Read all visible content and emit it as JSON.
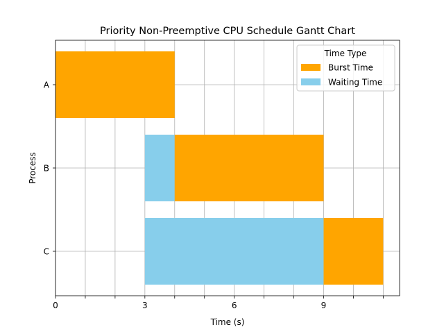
{
  "chart_data": {
    "type": "gantt",
    "title": "Priority Non-Preemptive CPU Schedule Gantt Chart",
    "xlabel": "Time (s)",
    "ylabel": "Process",
    "xlim": [
      0,
      11.55
    ],
    "x_ticks_major": [
      0,
      3,
      6,
      9
    ],
    "x_ticks_minor": [
      1,
      2,
      4,
      5,
      7,
      8,
      10,
      11
    ],
    "grid": true,
    "processes": [
      "A",
      "B",
      "C"
    ],
    "series": [
      {
        "name": "Burst Time",
        "color": "#ffa500"
      },
      {
        "name": "Waiting Time",
        "color": "#87ceeb"
      }
    ],
    "bars": [
      {
        "process": "A",
        "series": "Burst Time",
        "start": 0,
        "duration": 4
      },
      {
        "process": "B",
        "series": "Waiting Time",
        "start": 3,
        "duration": 1
      },
      {
        "process": "B",
        "series": "Burst Time",
        "start": 4,
        "duration": 5
      },
      {
        "process": "C",
        "series": "Waiting Time",
        "start": 3,
        "duration": 6
      },
      {
        "process": "C",
        "series": "Burst Time",
        "start": 9,
        "duration": 2
      }
    ],
    "legend": {
      "title": "Time Type",
      "placement": "top-right"
    }
  }
}
